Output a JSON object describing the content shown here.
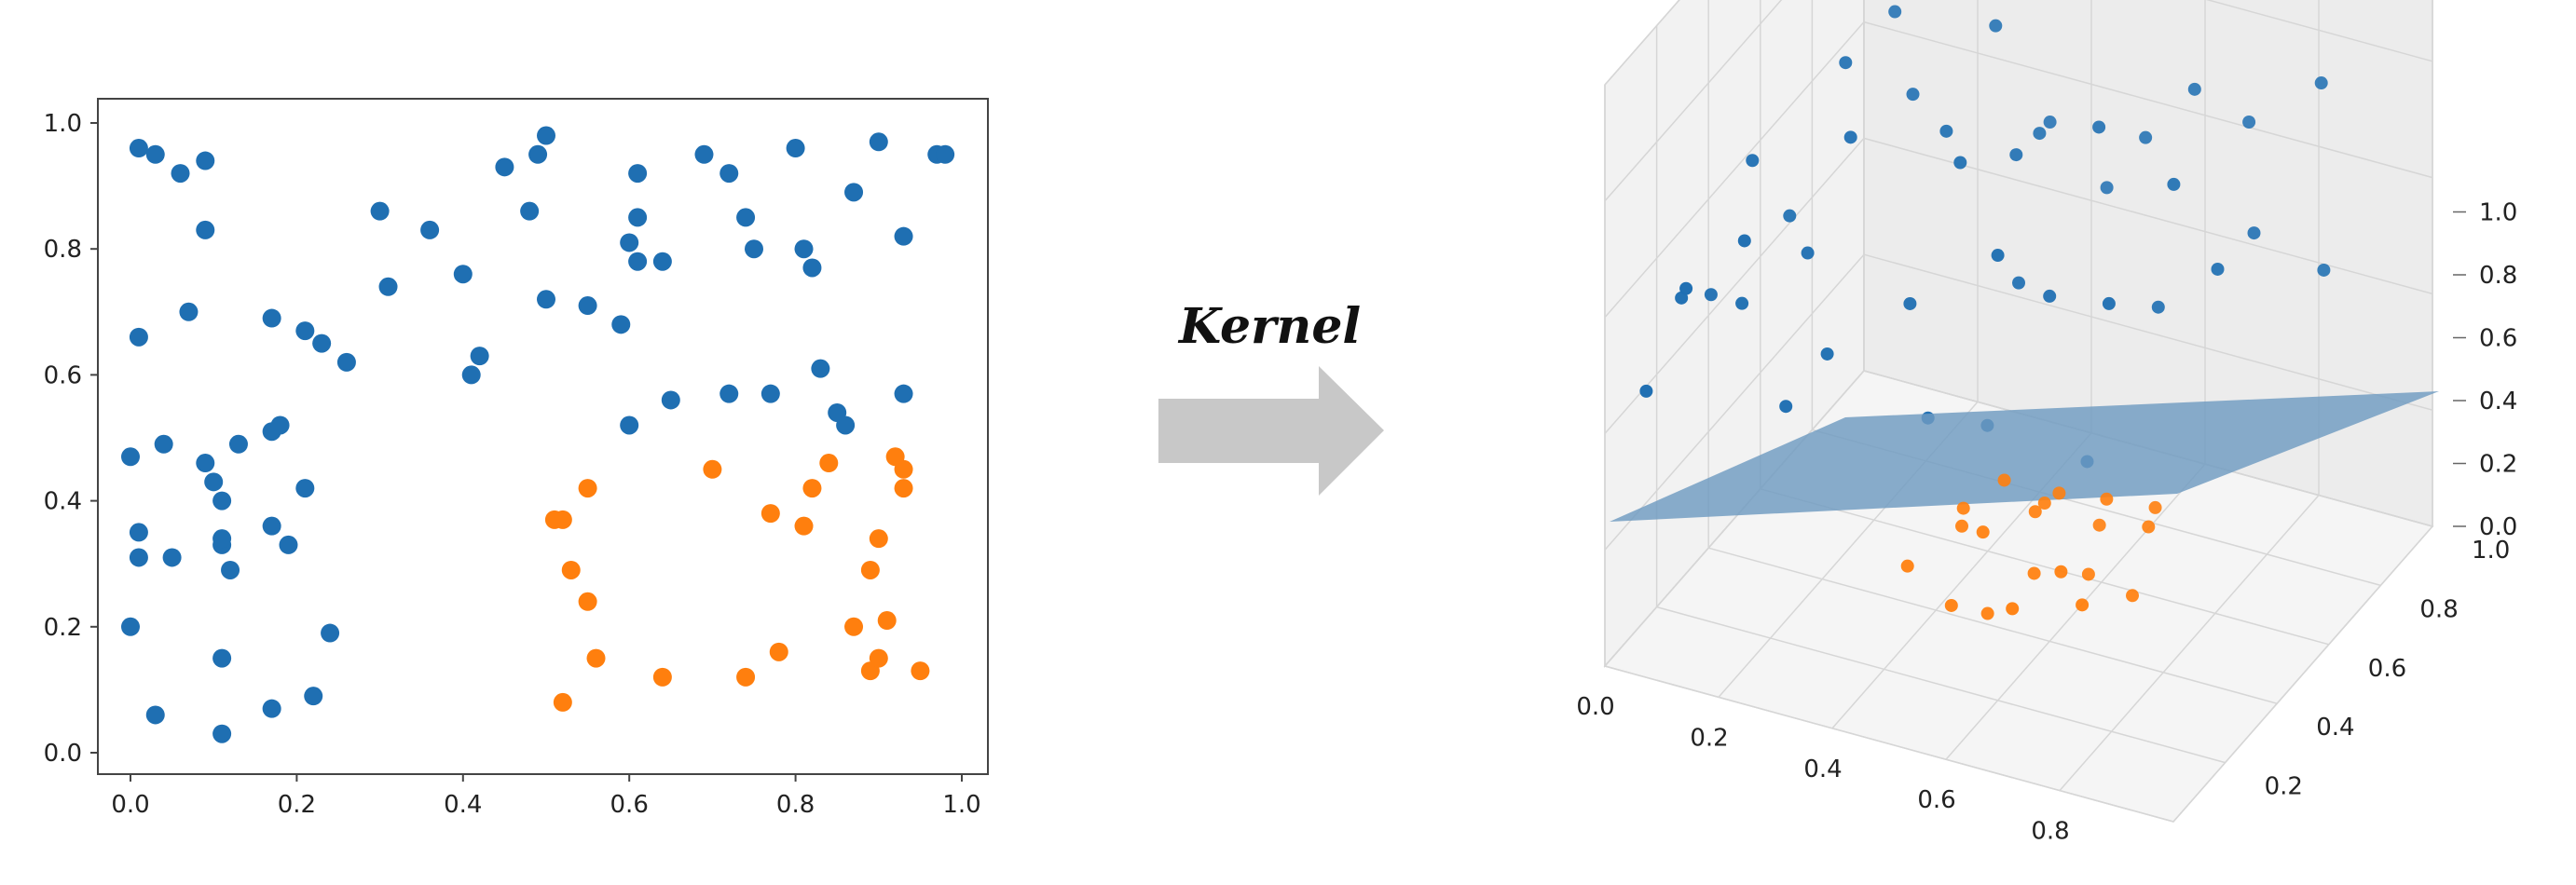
{
  "arrow_label": "Kernel",
  "colors": {
    "class_a": "#1f6fb2",
    "class_b": "#ff7f0e",
    "plane": "#6f9bc1",
    "arrow": "#c8c8c8"
  },
  "chart_data": [
    {
      "type": "scatter",
      "xlim": [
        0,
        1
      ],
      "ylim": [
        0,
        1
      ],
      "x_ticks": [
        "0.0",
        "0.2",
        "0.4",
        "0.6",
        "0.8",
        "1.0"
      ],
      "y_ticks": [
        "0.0",
        "0.2",
        "0.4",
        "0.6",
        "0.8",
        "1.0"
      ],
      "grid": false,
      "series": [
        {
          "color": "#1f6fb2",
          "points": [
            [
              0.01,
              0.96
            ],
            [
              0.03,
              0.95
            ],
            [
              0.06,
              0.92
            ],
            [
              0.09,
              0.94
            ],
            [
              0.09,
              0.83
            ],
            [
              0.07,
              0.7
            ],
            [
              0.01,
              0.66
            ],
            [
              0.3,
              0.86
            ],
            [
              0.36,
              0.83
            ],
            [
              0.4,
              0.76
            ],
            [
              0.31,
              0.74
            ],
            [
              0.45,
              0.93
            ],
            [
              0.48,
              0.86
            ],
            [
              0.49,
              0.95
            ],
            [
              0.5,
              0.98
            ],
            [
              0.61,
              0.92
            ],
            [
              0.61,
              0.85
            ],
            [
              0.6,
              0.81
            ],
            [
              0.61,
              0.78
            ],
            [
              0.64,
              0.78
            ],
            [
              0.69,
              0.95
            ],
            [
              0.72,
              0.92
            ],
            [
              0.74,
              0.85
            ],
            [
              0.75,
              0.8
            ],
            [
              0.8,
              0.96
            ],
            [
              0.81,
              0.8
            ],
            [
              0.82,
              0.77
            ],
            [
              0.87,
              0.89
            ],
            [
              0.9,
              0.97
            ],
            [
              0.93,
              0.82
            ],
            [
              0.97,
              0.95
            ],
            [
              0.98,
              0.95
            ],
            [
              0.5,
              0.72
            ],
            [
              0.55,
              0.71
            ],
            [
              0.59,
              0.68
            ],
            [
              0.17,
              0.69
            ],
            [
              0.21,
              0.67
            ],
            [
              0.23,
              0.65
            ],
            [
              0.26,
              0.62
            ],
            [
              0.42,
              0.63
            ],
            [
              0.41,
              0.6
            ],
            [
              0.0,
              0.47
            ],
            [
              0.04,
              0.49
            ],
            [
              0.13,
              0.49
            ],
            [
              0.17,
              0.51
            ],
            [
              0.18,
              0.52
            ],
            [
              0.09,
              0.46
            ],
            [
              0.1,
              0.43
            ],
            [
              0.11,
              0.4
            ],
            [
              0.21,
              0.42
            ],
            [
              0.01,
              0.35
            ],
            [
              0.01,
              0.31
            ],
            [
              0.05,
              0.31
            ],
            [
              0.11,
              0.33
            ],
            [
              0.11,
              0.34
            ],
            [
              0.12,
              0.29
            ],
            [
              0.17,
              0.36
            ],
            [
              0.19,
              0.33
            ],
            [
              0.0,
              0.2
            ],
            [
              0.24,
              0.19
            ],
            [
              0.11,
              0.15
            ],
            [
              0.03,
              0.06
            ],
            [
              0.11,
              0.03
            ],
            [
              0.17,
              0.07
            ],
            [
              0.22,
              0.09
            ],
            [
              0.6,
              0.52
            ],
            [
              0.65,
              0.56
            ],
            [
              0.72,
              0.57
            ],
            [
              0.77,
              0.57
            ],
            [
              0.83,
              0.61
            ],
            [
              0.85,
              0.54
            ],
            [
              0.86,
              0.52
            ],
            [
              0.93,
              0.57
            ]
          ]
        },
        {
          "color": "#ff7f0e",
          "points": [
            [
              0.51,
              0.37
            ],
            [
              0.52,
              0.37
            ],
            [
              0.55,
              0.42
            ],
            [
              0.53,
              0.29
            ],
            [
              0.55,
              0.24
            ],
            [
              0.56,
              0.15
            ],
            [
              0.52,
              0.08
            ],
            [
              0.64,
              0.12
            ],
            [
              0.7,
              0.45
            ],
            [
              0.74,
              0.12
            ],
            [
              0.77,
              0.38
            ],
            [
              0.78,
              0.16
            ],
            [
              0.81,
              0.36
            ],
            [
              0.82,
              0.42
            ],
            [
              0.84,
              0.46
            ],
            [
              0.87,
              0.2
            ],
            [
              0.89,
              0.29
            ],
            [
              0.89,
              0.13
            ],
            [
              0.9,
              0.34
            ],
            [
              0.9,
              0.15
            ],
            [
              0.91,
              0.21
            ],
            [
              0.92,
              0.47
            ],
            [
              0.93,
              0.45
            ],
            [
              0.93,
              0.42
            ],
            [
              0.95,
              0.13
            ]
          ]
        }
      ]
    },
    {
      "type": "scatter3d",
      "x_ticks": [
        "0.0",
        "0.2",
        "0.4",
        "0.6",
        "0.8"
      ],
      "y_ticks": [
        "0.2",
        "0.4",
        "0.6",
        "0.8",
        "1.0"
      ],
      "z_ticks": [
        "0.0",
        "0.2",
        "0.4",
        "0.6",
        "0.8",
        "1.0"
      ],
      "grid": true,
      "separating_plane_z": [
        0.3,
        0.4
      ],
      "series": [
        {
          "color": "#1f6fb2",
          "points": [
            [
              0.05,
              0.05,
              0.55
            ],
            [
              0.08,
              0.12,
              0.72
            ],
            [
              0.12,
              0.05,
              0.8
            ],
            [
              0.15,
              0.2,
              0.68
            ],
            [
              0.2,
              0.1,
              0.9
            ],
            [
              0.22,
              0.3,
              0.75
            ],
            [
              0.1,
              0.35,
              0.88
            ],
            [
              0.25,
              0.4,
              0.95
            ],
            [
              0.3,
              0.2,
              0.62
            ],
            [
              0.35,
              0.55,
              0.9
            ],
            [
              0.4,
              0.3,
              0.7
            ],
            [
              0.45,
              0.6,
              0.85
            ],
            [
              0.15,
              0.6,
              0.95
            ],
            [
              0.2,
              0.75,
              0.8
            ],
            [
              0.3,
              0.85,
              0.92
            ],
            [
              0.1,
              0.9,
              0.85
            ],
            [
              0.4,
              0.8,
              0.75
            ],
            [
              0.5,
              0.5,
              0.65
            ],
            [
              0.55,
              0.7,
              0.88
            ],
            [
              0.6,
              0.4,
              0.72
            ],
            [
              0.65,
              0.85,
              0.9
            ],
            [
              0.7,
              0.6,
              0.6
            ],
            [
              0.75,
              0.3,
              0.82
            ],
            [
              0.8,
              0.75,
              0.7
            ],
            [
              0.85,
              0.9,
              0.95
            ],
            [
              0.7,
              0.95,
              0.78
            ],
            [
              0.6,
              0.2,
              0.94
            ],
            [
              0.5,
              0.15,
              0.58
            ],
            [
              0.35,
              0.95,
              0.66
            ],
            [
              0.85,
              0.5,
              0.8
            ],
            [
              0.05,
              0.3,
              0.6
            ],
            [
              0.25,
              0.15,
              0.52
            ],
            [
              0.45,
              0.95,
              0.55
            ],
            [
              0.65,
              0.05,
              0.68
            ],
            [
              0.78,
              0.15,
              0.58
            ],
            [
              0.9,
              0.8,
              0.62
            ],
            [
              0.12,
              0.45,
              0.7
            ],
            [
              0.42,
              0.45,
              0.92
            ],
            [
              0.55,
              0.88,
              0.74
            ],
            [
              0.75,
              0.55,
              0.92
            ]
          ]
        },
        {
          "color": "#ff7f0e",
          "points": [
            [
              0.35,
              0.4,
              0.08
            ],
            [
              0.4,
              0.5,
              0.12
            ],
            [
              0.45,
              0.35,
              0.06
            ],
            [
              0.5,
              0.6,
              0.14
            ],
            [
              0.55,
              0.45,
              0.1
            ],
            [
              0.6,
              0.55,
              0.05
            ],
            [
              0.48,
              0.7,
              0.09
            ],
            [
              0.62,
              0.4,
              0.16
            ],
            [
              0.66,
              0.65,
              0.11
            ],
            [
              0.58,
              0.3,
              0.13
            ],
            [
              0.52,
              0.52,
              0.18
            ],
            [
              0.7,
              0.5,
              0.07
            ],
            [
              0.42,
              0.62,
              0.15
            ],
            [
              0.64,
              0.72,
              0.1
            ],
            [
              0.56,
              0.68,
              0.06
            ],
            [
              0.38,
              0.55,
              0.12
            ],
            [
              0.68,
              0.35,
              0.14
            ],
            [
              0.46,
              0.45,
              0.16
            ],
            [
              0.6,
              0.62,
              0.17
            ],
            [
              0.5,
              0.38,
              0.04
            ]
          ]
        }
      ]
    }
  ]
}
